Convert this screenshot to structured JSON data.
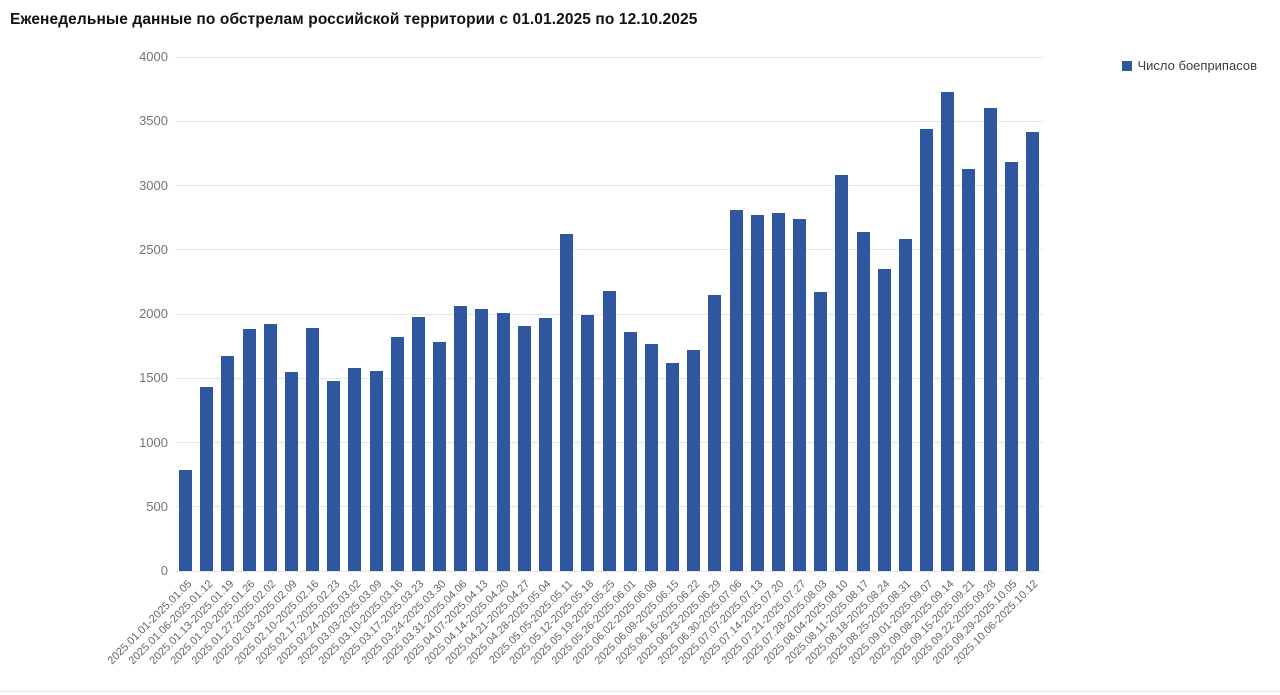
{
  "title": "Еженедельные данные по обстрелам российской территории с 01.01.2025 по 12.10.2025",
  "legend": {
    "items": [
      {
        "label": "Число боеприпасов",
        "color": "#2e579f"
      }
    ]
  },
  "axes": {
    "y_ticks": [
      "0",
      "500",
      "1000",
      "1500",
      "2000",
      "2500",
      "3000",
      "3500",
      "4000"
    ]
  },
  "chart_data": {
    "type": "bar",
    "title": "Еженедельные данные по обстрелам российской территории с 01.01.2025 по 12.10.2025",
    "xlabel": "",
    "ylabel": "",
    "ylim": [
      0,
      4000
    ],
    "ytick_step": 500,
    "grid": true,
    "legend_position": "top-right",
    "bar_color": "#2e579f",
    "categories": [
      "2025.01.01-2025.01.05",
      "2025.01.06-2025.01.12",
      "2025.01.13-2025.01.19",
      "2025.01.20-2025.01.26",
      "2025.01.27-2025.02.02",
      "2025.02.03-2025.02.09",
      "2025.02.10-2025.02.16",
      "2025.02.17-2025.02.23",
      "2025.02.24-2025.03.02",
      "2025.03.03-2025.03.09",
      "2025.03.10-2025.03.16",
      "2025.03.17-2025.03.23",
      "2025.03.24-2025.03.30",
      "2025.03.31-2025.04.06",
      "2025.04.07-2025.04.13",
      "2025.04.14-2025.04.20",
      "2025.04.21-2025.04.27",
      "2025.04.28-2025.05.04",
      "2025.05.05-2025.05.11",
      "2025.05.12-2025.05.18",
      "2025.05.19-2025.05.25",
      "2025.05.26-2025.06.01",
      "2025.06.02-2025.06.08",
      "2025.06.09-2025.06.15",
      "2025.06.16-2025.06.22",
      "2025.06.23-2025.06.29",
      "2025.06.30-2025.07.06",
      "2025.07.07-2025.07.13",
      "2025.07.14-2025.07.20",
      "2025.07.21-2025.07.27",
      "2025.07.28-2025.08.03",
      "2025.08.04-2025.08.10",
      "2025.08.11-2025.08.17",
      "2025.08.18-2025.08.24",
      "2025.08.25-2025.08.31",
      "2025.09.01-2025.09.07",
      "2025.09.08-2025.09.14",
      "2025.09.15-2025.09.21",
      "2025.09.22-2025.09.28",
      "2025.09.29-2025.10.05",
      "2025.10.06-2025.10.12"
    ],
    "series": [
      {
        "name": "Число боеприпасов",
        "color": "#2e579f",
        "values": [
          790,
          1430,
          1670,
          1880,
          1920,
          1550,
          1890,
          1480,
          1580,
          1560,
          1820,
          1980,
          1780,
          2060,
          2040,
          2010,
          1910,
          1970,
          2620,
          1990,
          2180,
          1860,
          1770,
          1620,
          1720,
          2150,
          2810,
          2770,
          2790,
          2740,
          2170,
          3080,
          2640,
          2350,
          2580,
          3440,
          3730,
          3130,
          3600,
          3180,
          3420
        ]
      }
    ]
  }
}
